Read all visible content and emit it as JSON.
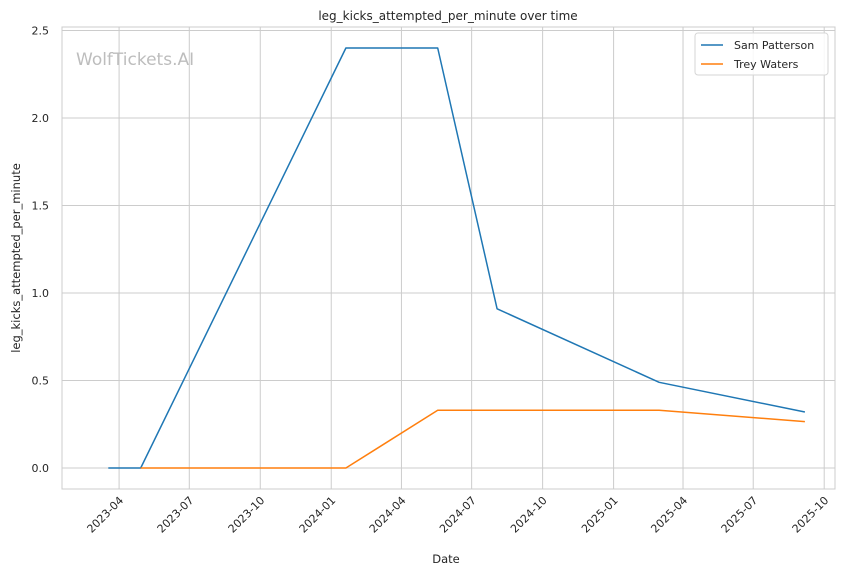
{
  "chart_data": {
    "type": "line",
    "title": "leg_kicks_attempted_per_minute over time",
    "xlabel": "Date",
    "ylabel": "leg_kicks_attempted_per_minute",
    "watermark": "WolfTickets.AI",
    "ylim": [
      -0.12,
      2.52
    ],
    "xlim": [
      "2023-01-17",
      "2025-10-15"
    ],
    "x_ticks": [
      "2023-04",
      "2023-07",
      "2023-10",
      "2024-01",
      "2024-04",
      "2024-07",
      "2024-10",
      "2025-01",
      "2025-04",
      "2025-07",
      "2025-10"
    ],
    "y_ticks": [
      "0.0",
      "0.5",
      "1.0",
      "1.5",
      "2.0",
      "2.5"
    ],
    "grid": true,
    "legend_position": "top-right",
    "series": [
      {
        "name": "Sam Patterson",
        "color": "#1f77b4",
        "points": [
          {
            "x": "2023-03-18",
            "y": 0.0
          },
          {
            "x": "2023-04-29",
            "y": 0.0
          },
          {
            "x": "2024-01-20",
            "y": 2.4
          },
          {
            "x": "2024-05-18",
            "y": 2.4
          },
          {
            "x": "2024-08-03",
            "y": 0.91
          },
          {
            "x": "2025-03-01",
            "y": 0.49
          },
          {
            "x": "2025-09-06",
            "y": 0.32
          }
        ]
      },
      {
        "name": "Trey Waters",
        "color": "#ff7f0e",
        "points": [
          {
            "x": "2023-04-29",
            "y": 0.0
          },
          {
            "x": "2024-01-20",
            "y": 0.0
          },
          {
            "x": "2024-05-18",
            "y": 0.33
          },
          {
            "x": "2025-03-01",
            "y": 0.33
          },
          {
            "x": "2025-09-06",
            "y": 0.265
          }
        ]
      }
    ]
  }
}
